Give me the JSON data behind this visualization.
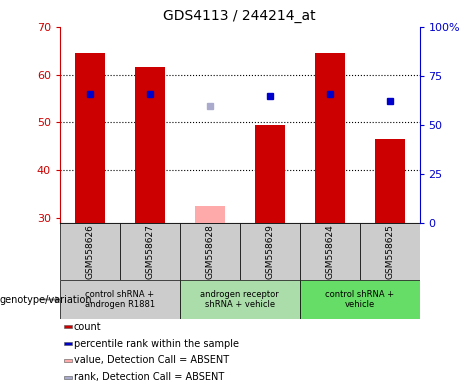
{
  "title": "GDS4113 / 244214_at",
  "samples": [
    "GSM558626",
    "GSM558627",
    "GSM558628",
    "GSM558629",
    "GSM558624",
    "GSM558625"
  ],
  "bar_values": [
    64.5,
    61.5,
    null,
    49.5,
    64.5,
    46.5
  ],
  "bar_absent_values": [
    null,
    null,
    32.5,
    null,
    null,
    null
  ],
  "bar_color": "#cc0000",
  "bar_absent_color": "#ffaaaa",
  "dot_values": [
    56,
    56,
    null,
    55.5,
    56,
    54.5
  ],
  "dot_absent_values": [
    null,
    null,
    53.5,
    null,
    null,
    null
  ],
  "dot_color": "#0000cc",
  "dot_absent_color": "#aaaacc",
  "ylim_left": [
    29,
    70
  ],
  "ylim_right": [
    0,
    100
  ],
  "yticks_left": [
    30,
    40,
    50,
    60,
    70
  ],
  "yticks_right": [
    0,
    25,
    50,
    75,
    100
  ],
  "ytick_labels_right": [
    "0",
    "25",
    "50",
    "75",
    "100%"
  ],
  "bar_bottom": 29,
  "groups": [
    {
      "label": "control shRNA +\nandrogen R1881",
      "samples": [
        0,
        1
      ],
      "color": "#cccccc"
    },
    {
      "label": "androgen receptor\nshRNA + vehicle",
      "samples": [
        2,
        3
      ],
      "color": "#aaddaa"
    },
    {
      "label": "control shRNA +\nvehicle",
      "samples": [
        4,
        5
      ],
      "color": "#66dd66"
    }
  ],
  "genotype_label": "genotype/variation",
  "legend_items": [
    {
      "color": "#cc0000",
      "label": "count"
    },
    {
      "color": "#0000cc",
      "label": "percentile rank within the sample"
    },
    {
      "color": "#ffaaaa",
      "label": "value, Detection Call = ABSENT"
    },
    {
      "color": "#aaaacc",
      "label": "rank, Detection Call = ABSENT"
    }
  ],
  "bg_plot": "#ffffff",
  "bar_width": 0.5,
  "sample_box_color": "#cccccc",
  "grid_dotted_color": "#333333",
  "left_spine_color": "#cc0000",
  "right_spine_color": "#0000cc"
}
